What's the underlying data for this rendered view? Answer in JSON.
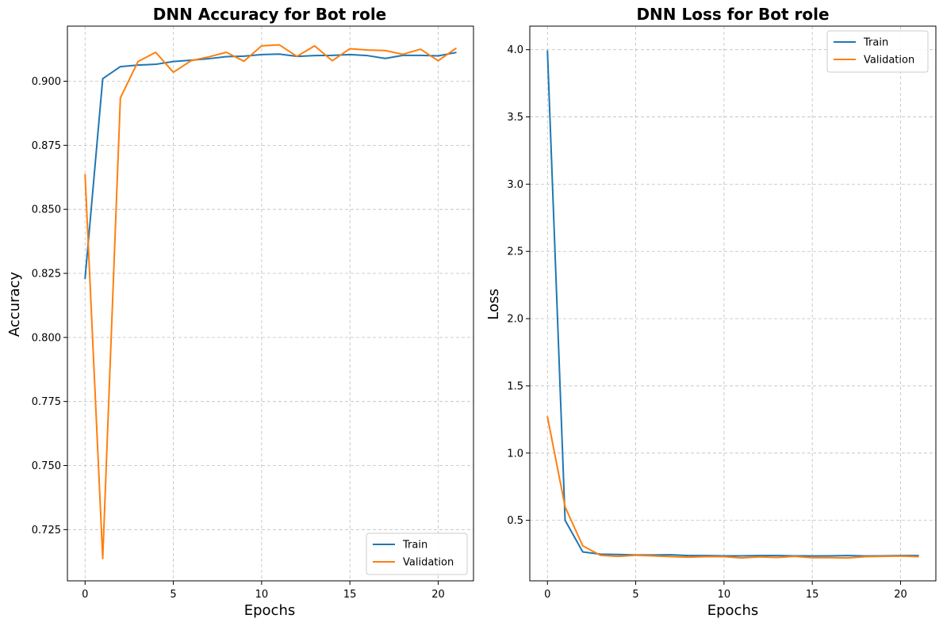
{
  "colors": {
    "train": "#1f77b4",
    "validation": "#ff7f0e"
  },
  "chart_data": [
    {
      "type": "line",
      "title": "DNN Accuracy for Bot role",
      "xlabel": "Epochs",
      "ylabel": "Accuracy",
      "xlim": [
        -1,
        22
      ],
      "ylim": [
        0.705,
        0.9215
      ],
      "xticks": [
        0,
        5,
        10,
        15,
        20
      ],
      "yticks": [
        0.725,
        0.75,
        0.775,
        0.8,
        0.825,
        0.85,
        0.875,
        0.9
      ],
      "ytick_labels": [
        "0.725",
        "0.750",
        "0.775",
        "0.800",
        "0.825",
        "0.850",
        "0.875",
        "0.900"
      ],
      "grid": true,
      "legend_position": "lower right",
      "x": [
        0,
        1,
        2,
        3,
        4,
        5,
        6,
        7,
        8,
        9,
        10,
        11,
        12,
        13,
        14,
        15,
        16,
        17,
        18,
        19,
        20,
        21
      ],
      "series": [
        {
          "name": "Train",
          "color_key": "train",
          "values": [
            0.823,
            0.901,
            0.9057,
            0.9063,
            0.9066,
            0.9077,
            0.9082,
            0.9088,
            0.9096,
            0.9098,
            0.9104,
            0.9106,
            0.9097,
            0.91,
            0.9101,
            0.9104,
            0.91,
            0.9089,
            0.9101,
            0.9101,
            0.9099,
            0.9112
          ]
        },
        {
          "name": "Validation",
          "color_key": "validation",
          "values": [
            0.8635,
            0.7137,
            0.8935,
            0.9077,
            0.9113,
            0.9035,
            0.908,
            0.9095,
            0.9113,
            0.9078,
            0.9138,
            0.9142,
            0.9097,
            0.9138,
            0.908,
            0.9127,
            0.9122,
            0.912,
            0.9105,
            0.9125,
            0.908,
            0.9128
          ]
        }
      ]
    },
    {
      "type": "line",
      "title": "DNN Loss for Bot role",
      "xlabel": "Epochs",
      "ylabel": "Loss",
      "xlim": [
        -1,
        22
      ],
      "ylim": [
        0.05,
        4.175
      ],
      "xticks": [
        0,
        5,
        10,
        15,
        20
      ],
      "yticks": [
        0.5,
        1.0,
        1.5,
        2.0,
        2.5,
        3.0,
        3.5,
        4.0
      ],
      "ytick_labels": [
        "0.5",
        "1.0",
        "1.5",
        "2.0",
        "2.5",
        "3.0",
        "3.5",
        "4.0"
      ],
      "grid": true,
      "legend_position": "upper right",
      "x": [
        0,
        1,
        2,
        3,
        4,
        5,
        6,
        7,
        8,
        9,
        10,
        11,
        12,
        13,
        14,
        15,
        16,
        17,
        18,
        19,
        20,
        21
      ],
      "series": [
        {
          "name": "Train",
          "color_key": "train",
          "values": [
            3.99,
            0.5,
            0.265,
            0.248,
            0.246,
            0.242,
            0.242,
            0.244,
            0.238,
            0.238,
            0.236,
            0.236,
            0.238,
            0.238,
            0.236,
            0.235,
            0.236,
            0.238,
            0.235,
            0.236,
            0.238,
            0.238
          ]
        },
        {
          "name": "Validation",
          "color_key": "validation",
          "values": [
            1.27,
            0.6,
            0.31,
            0.24,
            0.232,
            0.24,
            0.236,
            0.23,
            0.226,
            0.23,
            0.23,
            0.22,
            0.228,
            0.224,
            0.232,
            0.222,
            0.222,
            0.22,
            0.23,
            0.232,
            0.234,
            0.23
          ]
        }
      ]
    }
  ]
}
